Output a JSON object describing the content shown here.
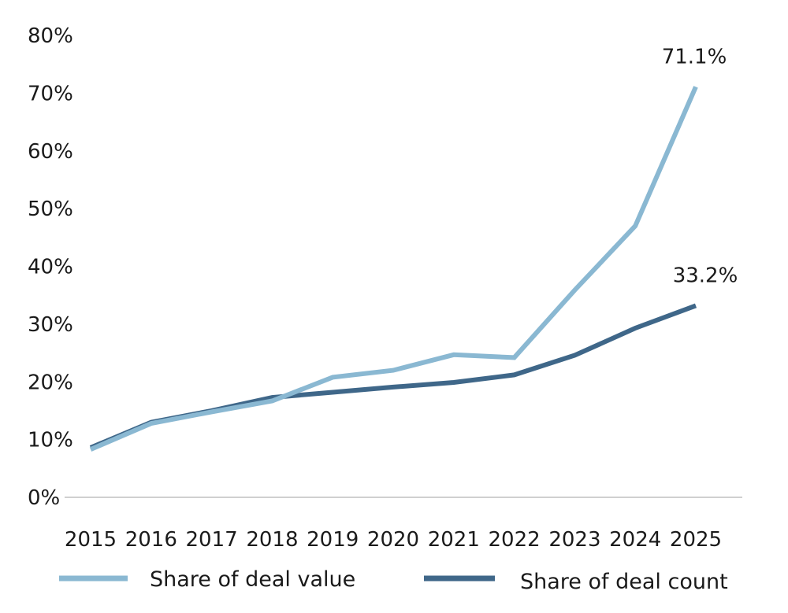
{
  "chart_data": {
    "type": "line",
    "title": "",
    "xlabel": "",
    "ylabel": "",
    "ylim": [
      0,
      80
    ],
    "grid": false,
    "legend_position": "bottom",
    "categories": [
      "2015",
      "2016",
      "2017",
      "2018",
      "2019",
      "2020",
      "2021",
      "2022",
      "2023",
      "2024",
      "2025"
    ],
    "y_ticks": [
      "0%",
      "10%",
      "20%",
      "30%",
      "40%",
      "50%",
      "60%",
      "70%",
      "80%"
    ],
    "series": [
      {
        "name": "Share of deal value",
        "color": "#8ab8d2",
        "values": [
          8.3,
          12.8,
          14.8,
          16.7,
          20.8,
          22.0,
          24.7,
          24.2,
          35.9,
          47.0,
          71.1
        ],
        "end_label": "71.1%"
      },
      {
        "name": "Share of deal count",
        "color": "#3f6789",
        "values": [
          8.6,
          13.0,
          15.0,
          17.3,
          18.2,
          19.1,
          19.9,
          21.2,
          24.6,
          29.3,
          33.2
        ],
        "end_label": "33.2%"
      }
    ]
  }
}
